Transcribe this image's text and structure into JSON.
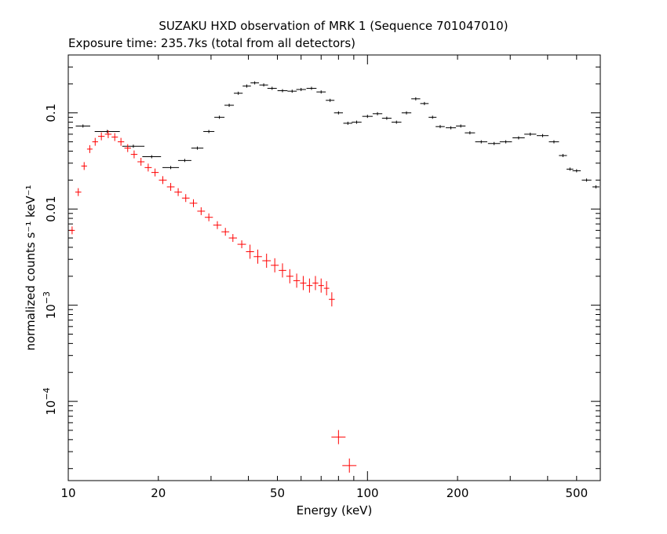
{
  "chart_data": {
    "type": "scatter",
    "title": "SUZAKU HXD observation of MRK 1 (Sequence 701047010)",
    "subtitle": "Exposure time: 235.7ks (total from all detectors)",
    "xlabel": "Energy (keV)",
    "ylabel": "normalized counts s⁻¹ keV⁻¹",
    "xscale": "log",
    "yscale": "log",
    "xlim": [
      10,
      600
    ],
    "ylim": [
      1.5e-05,
      0.4
    ],
    "x_ticks": [
      {
        "value": 10,
        "label": "10"
      },
      {
        "value": 20,
        "label": "20"
      },
      {
        "value": 50,
        "label": "50"
      },
      {
        "value": 100,
        "label": "100"
      },
      {
        "value": 200,
        "label": "200"
      },
      {
        "value": 500,
        "label": "500"
      }
    ],
    "y_ticks": [
      {
        "value": 0.1,
        "base": "0.1",
        "exp": ""
      },
      {
        "value": 0.01,
        "base": "0.01",
        "exp": ""
      },
      {
        "value": 0.001,
        "base": "10",
        "exp": "−3"
      },
      {
        "value": 0.0001,
        "base": "10",
        "exp": "−4"
      }
    ],
    "series": [
      {
        "color": "#000000",
        "points": [
          [
            11.2,
            0.073
          ],
          [
            13.5,
            0.064
          ],
          [
            16.5,
            0.045
          ],
          [
            19.0,
            0.035
          ],
          [
            22.0,
            0.027
          ],
          [
            24.5,
            0.032
          ],
          [
            27.0,
            0.043
          ],
          [
            29.5,
            0.064
          ],
          [
            32.0,
            0.09
          ],
          [
            34.5,
            0.12
          ],
          [
            37.0,
            0.16
          ],
          [
            39.5,
            0.19
          ],
          [
            42.0,
            0.205
          ],
          [
            45.0,
            0.195
          ],
          [
            48.0,
            0.18
          ],
          [
            52.0,
            0.17
          ],
          [
            56.0,
            0.168
          ],
          [
            60.0,
            0.175
          ],
          [
            65.0,
            0.18
          ],
          [
            70.0,
            0.165
          ],
          [
            75.0,
            0.135
          ],
          [
            80.0,
            0.1
          ],
          [
            86.0,
            0.078
          ],
          [
            92.0,
            0.08
          ],
          [
            100.0,
            0.092
          ],
          [
            108.0,
            0.098
          ],
          [
            116.0,
            0.088
          ],
          [
            125.0,
            0.08
          ],
          [
            135.0,
            0.1
          ],
          [
            145.0,
            0.14
          ],
          [
            155.0,
            0.125
          ],
          [
            165.0,
            0.09
          ],
          [
            175.0,
            0.072
          ],
          [
            190.0,
            0.07
          ],
          [
            205.0,
            0.073
          ],
          [
            220.0,
            0.062
          ],
          [
            240.0,
            0.05
          ],
          [
            265.0,
            0.048
          ],
          [
            290.0,
            0.05
          ],
          [
            320.0,
            0.055
          ],
          [
            350.0,
            0.06
          ],
          [
            385.0,
            0.058
          ],
          [
            420.0,
            0.05
          ],
          [
            450.0,
            0.036
          ],
          [
            475.0,
            0.026
          ],
          [
            500.0,
            0.025
          ],
          [
            540.0,
            0.02
          ],
          [
            580.0,
            0.017
          ]
        ]
      },
      {
        "color": "#ff0000",
        "points": [
          [
            10.3,
            0.006
          ],
          [
            10.8,
            0.015
          ],
          [
            11.3,
            0.028
          ],
          [
            11.8,
            0.042
          ],
          [
            12.3,
            0.05
          ],
          [
            12.9,
            0.057
          ],
          [
            13.6,
            0.06
          ],
          [
            14.3,
            0.056
          ],
          [
            15.0,
            0.05
          ],
          [
            15.8,
            0.043
          ],
          [
            16.6,
            0.037
          ],
          [
            17.5,
            0.031
          ],
          [
            18.5,
            0.027
          ],
          [
            19.5,
            0.024
          ],
          [
            20.7,
            0.02
          ],
          [
            22.0,
            0.017
          ],
          [
            23.3,
            0.015
          ],
          [
            24.7,
            0.013
          ],
          [
            26.2,
            0.0115
          ],
          [
            27.8,
            0.0095
          ],
          [
            29.5,
            0.0082
          ],
          [
            31.5,
            0.0068
          ],
          [
            33.5,
            0.0058
          ],
          [
            35.5,
            0.005
          ],
          [
            38.0,
            0.0043
          ],
          [
            40.5,
            0.0036
          ],
          [
            43.0,
            0.0032
          ],
          [
            46.0,
            0.0029
          ],
          [
            49.0,
            0.0026
          ],
          [
            52.0,
            0.0023
          ],
          [
            55.0,
            0.002
          ],
          [
            58.0,
            0.0018
          ],
          [
            61.0,
            0.0017
          ],
          [
            64.0,
            0.0016
          ],
          [
            67.0,
            0.0017
          ],
          [
            70.0,
            0.0016
          ],
          [
            73.0,
            0.0015
          ],
          [
            76.0,
            0.00115
          ],
          [
            80.0,
            4.25e-05
          ],
          [
            87.0,
            2.15e-05
          ]
        ]
      }
    ]
  }
}
